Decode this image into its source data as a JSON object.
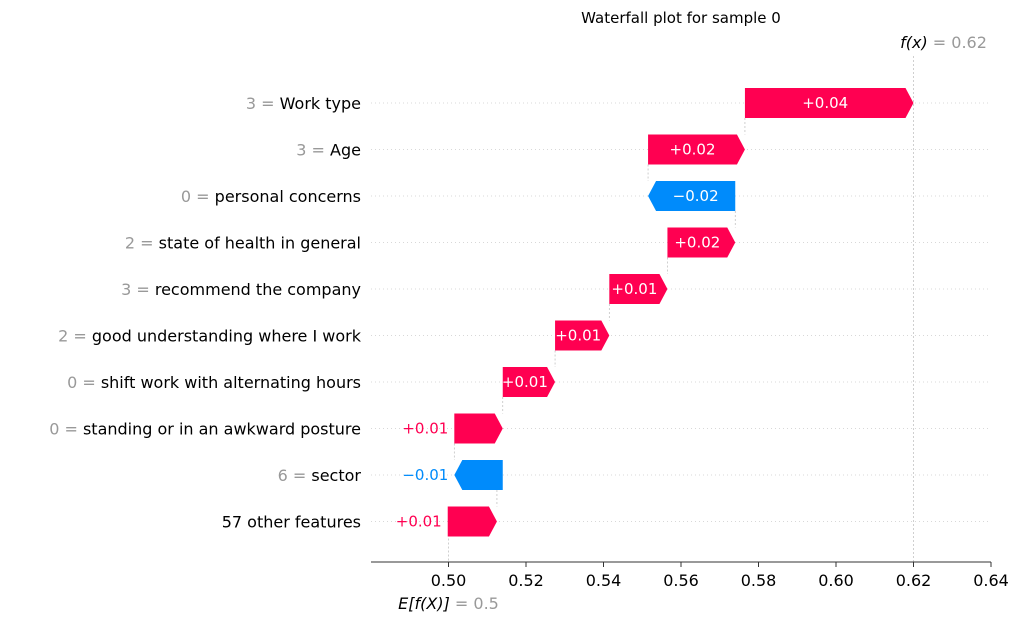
{
  "chart_data": {
    "type": "waterfall",
    "title": "Waterfall plot for sample 0",
    "base_value": {
      "prefix": "E[f(X)]",
      "value_text": "= 0.5",
      "value": 0.5
    },
    "output_value": {
      "prefix": "f(x)",
      "value_text": "= 0.62",
      "value": 0.62
    },
    "features": [
      {
        "value": "3",
        "name": "Work type",
        "contribution": 0.04,
        "label": "+0.04",
        "start": 0.5765,
        "end": 0.62
      },
      {
        "value": "3",
        "name": "Age",
        "contribution": 0.02,
        "label": "+0.02",
        "start": 0.5515,
        "end": 0.5765
      },
      {
        "value": "0",
        "name": "personal concerns",
        "contribution": -0.02,
        "label": "−0.02",
        "start": 0.574,
        "end": 0.5515
      },
      {
        "value": "2",
        "name": "state of health in general",
        "contribution": 0.02,
        "label": "+0.02",
        "start": 0.5565,
        "end": 0.574
      },
      {
        "value": "3",
        "name": "recommend the company",
        "contribution": 0.01,
        "label": "+0.01",
        "start": 0.5415,
        "end": 0.5565
      },
      {
        "value": "2",
        "name": "good understanding where I work",
        "contribution": 0.01,
        "label": "+0.01",
        "start": 0.5275,
        "end": 0.5415
      },
      {
        "value": "0",
        "name": "shift work with alternating hours",
        "contribution": 0.01,
        "label": "+0.01",
        "start": 0.514,
        "end": 0.5275
      },
      {
        "value": "0",
        "name": "standing or in an awkward posture",
        "contribution": 0.01,
        "label": "+0.01",
        "start": 0.5015,
        "end": 0.514
      },
      {
        "value": "6",
        "name": "sector",
        "contribution": -0.01,
        "label": "−0.01",
        "start": 0.514,
        "end": 0.5015
      },
      {
        "value": "",
        "name": "57 other features",
        "contribution": 0.01,
        "label": "+0.01",
        "start": 0.4998,
        "end": 0.5125
      }
    ],
    "xlim": [
      0.48,
      0.64
    ],
    "xticks": [
      "0.50",
      "0.52",
      "0.54",
      "0.56",
      "0.58",
      "0.60",
      "0.62",
      "0.64"
    ],
    "xtick_values": [
      0.5,
      0.52,
      0.54,
      0.56,
      0.58,
      0.6,
      0.62,
      0.64
    ],
    "colors": {
      "positive": "#ff0051",
      "negative": "#008bfb",
      "muted": "#999999",
      "axis": "#333333"
    }
  }
}
